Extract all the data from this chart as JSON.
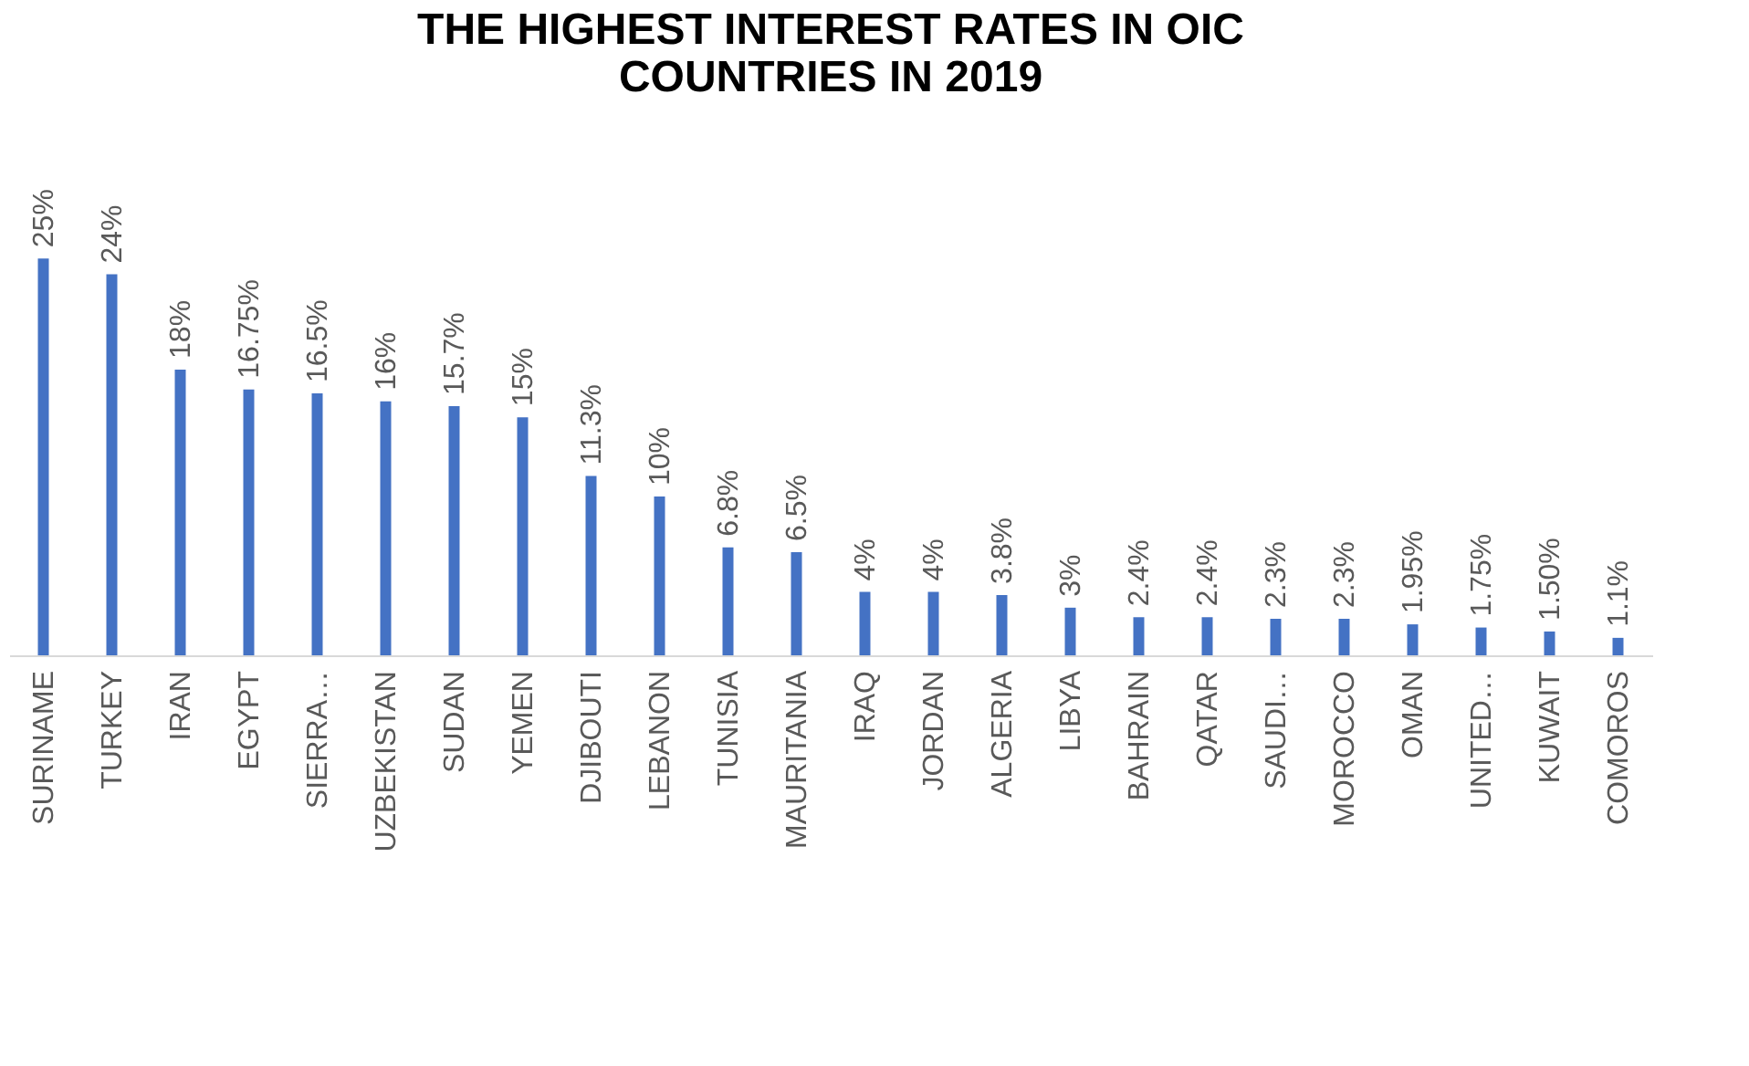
{
  "chart_data": {
    "type": "bar",
    "title": [
      "THE HIGHEST INTEREST RATES IN OIC",
      "COUNTRIES IN 2019"
    ],
    "categories": [
      "SURINAME",
      "TURKEY",
      "IRAN",
      "EGYPT",
      "SIERRA…",
      "UZBEKISTAN",
      "SUDAN",
      "YEMEN",
      "DJIBOUTI",
      "LEBANON",
      "TUNISIA",
      "MAURITANIA",
      "IRAQ",
      "JORDAN",
      "ALGERIA",
      "LIBYA",
      "BAHRAIN",
      "QATAR",
      "SAUDI…",
      "MOROCCO",
      "OMAN",
      "UNITED…",
      "KUWAIT",
      "COMOROS"
    ],
    "values": [
      25,
      24,
      18,
      16.75,
      16.5,
      16,
      15.7,
      15,
      11.3,
      10,
      6.8,
      6.5,
      4,
      4,
      3.8,
      3,
      2.4,
      2.4,
      2.3,
      2.3,
      1.95,
      1.75,
      1.5,
      1.1
    ],
    "value_labels": [
      "25%",
      "24%",
      "18%",
      "16.75%",
      "16.5%",
      "16%",
      "15.7%",
      "15%",
      "11.3%",
      "10%",
      "6.8%",
      "6.5%",
      "4%",
      "4%",
      "3.8%",
      "3%",
      "2.4%",
      "2.4%",
      "2.3%",
      "2.3%",
      "1.95%",
      "1.75%",
      "1.50%",
      "1.1%"
    ],
    "color": "#4472c4"
  }
}
